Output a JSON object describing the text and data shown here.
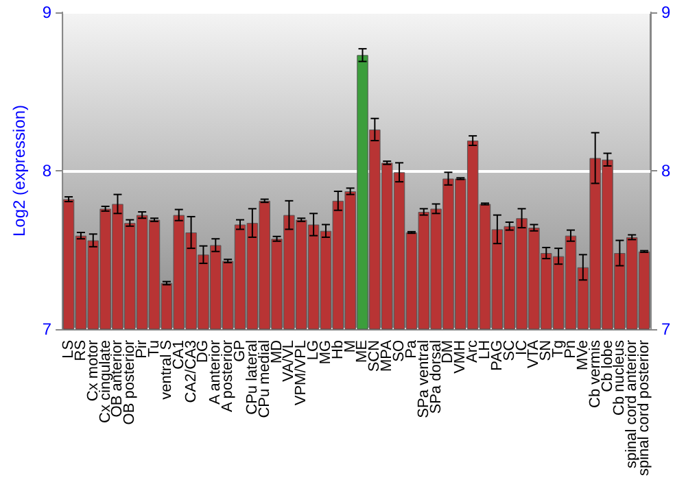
{
  "chart_data": {
    "type": "bar",
    "ylabel": "Log2 (expression)",
    "categories": [
      "LS",
      "RS",
      "Cx motor",
      "Cx cingulate",
      "OB anterior",
      "OB posterior",
      "Pir",
      "Tu",
      "ventral S",
      "CA1",
      "CA2/CA3",
      "DG",
      "A anterior",
      "A posterior",
      "GP",
      "CPu lateral",
      "CPu medial",
      "MD",
      "VA/VL",
      "VPM/VPL",
      "LG",
      "MG",
      "Hb",
      "M",
      "ME",
      "SCN",
      "MPA",
      "SO",
      "Pa",
      "SPa ventral",
      "SPa dorsal",
      "DM",
      "VMH",
      "Arc",
      "LH",
      "PAG",
      "SC",
      "IC",
      "VTA",
      "SN",
      "Tg",
      "Pn",
      "MVe",
      "Cb vermis",
      "Cb lobe",
      "Cb nucleus",
      "spinal cord anterior",
      "spinal cord posterior"
    ],
    "values": [
      7.82,
      7.59,
      7.56,
      7.76,
      7.79,
      7.67,
      7.72,
      7.69,
      7.29,
      7.72,
      7.61,
      7.47,
      7.53,
      7.43,
      7.66,
      7.67,
      7.81,
      7.57,
      7.72,
      7.69,
      7.66,
      7.62,
      7.81,
      7.87,
      8.73,
      8.26,
      8.05,
      7.99,
      7.61,
      7.74,
      7.76,
      7.95,
      7.95,
      8.19,
      7.79,
      7.63,
      7.65,
      7.7,
      7.64,
      7.48,
      7.46,
      7.59,
      7.39,
      8.08,
      8.07,
      7.48,
      7.58,
      7.49
    ],
    "errors": [
      0.015,
      0.02,
      0.04,
      0.015,
      0.06,
      0.02,
      0.02,
      0.01,
      0.01,
      0.035,
      0.1,
      0.055,
      0.04,
      0.01,
      0.03,
      0.09,
      0.01,
      0.015,
      0.09,
      0.01,
      0.07,
      0.04,
      0.06,
      0.02,
      0.04,
      0.07,
      0.01,
      0.06,
      0.005,
      0.02,
      0.03,
      0.04,
      0.005,
      0.03,
      0.005,
      0.09,
      0.025,
      0.06,
      0.02,
      0.035,
      0.05,
      0.035,
      0.08,
      0.16,
      0.04,
      0.08,
      0.015,
      0.005
    ],
    "colors": [
      "#b83434",
      "#b83434",
      "#b83434",
      "#b83434",
      "#b83434",
      "#b83434",
      "#b83434",
      "#b83434",
      "#b83434",
      "#b83434",
      "#b83434",
      "#b83434",
      "#b83434",
      "#b83434",
      "#b83434",
      "#b83434",
      "#b83434",
      "#b83434",
      "#b83434",
      "#b83434",
      "#b83434",
      "#b83434",
      "#b83434",
      "#b83434",
      "#3c9e3c",
      "#b83434",
      "#b83434",
      "#b83434",
      "#b83434",
      "#b83434",
      "#b83434",
      "#b83434",
      "#b83434",
      "#b83434",
      "#b83434",
      "#b83434",
      "#b83434",
      "#b83434",
      "#b83434",
      "#b83434",
      "#b83434",
      "#b83434",
      "#b83434",
      "#b83434",
      "#b83434",
      "#b83434",
      "#b83434",
      "#b83434"
    ],
    "ylim": [
      7,
      9
    ],
    "yticks": [
      7,
      8,
      9
    ],
    "y2lim": [
      7,
      9
    ],
    "y2ticks": [
      7,
      8,
      9
    ],
    "grid": "y"
  }
}
